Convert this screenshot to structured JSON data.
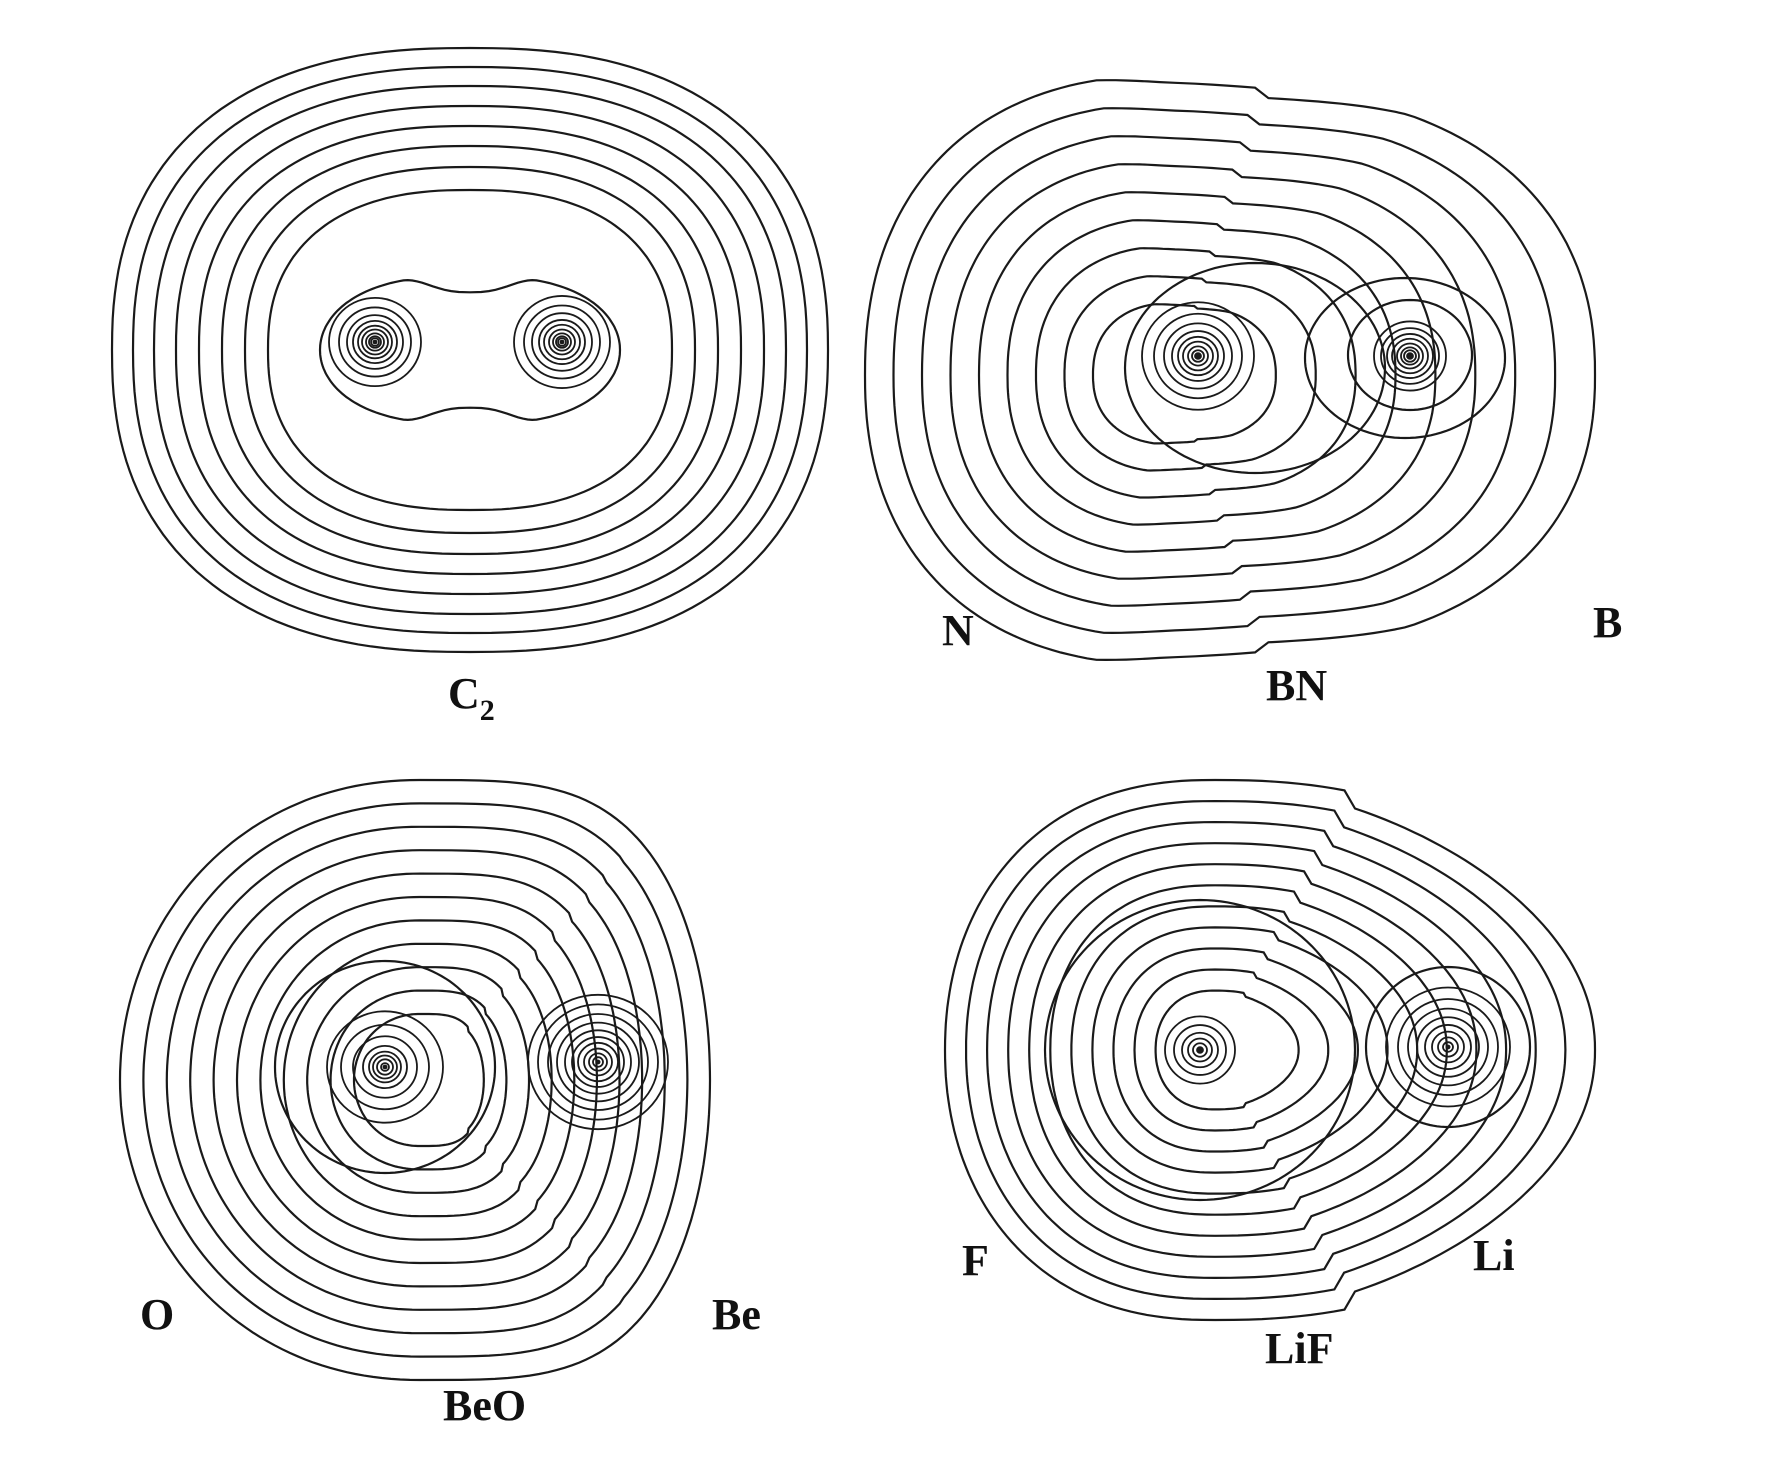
{
  "figure": {
    "panels": [
      {
        "id": "c2",
        "caption": "C",
        "caption_sub": "2",
        "left_atom": "",
        "right_atom": ""
      },
      {
        "id": "bn",
        "caption": "BN",
        "caption_sub": "",
        "left_atom": "N",
        "right_atom": "B"
      },
      {
        "id": "beo",
        "caption": "BeO",
        "caption_sub": "",
        "left_atom": "O",
        "right_atom": "Be"
      },
      {
        "id": "lif",
        "caption": "LiF",
        "caption_sub": "",
        "left_atom": "F",
        "right_atom": "Li"
      }
    ],
    "line_color": "#1a1a1a"
  }
}
